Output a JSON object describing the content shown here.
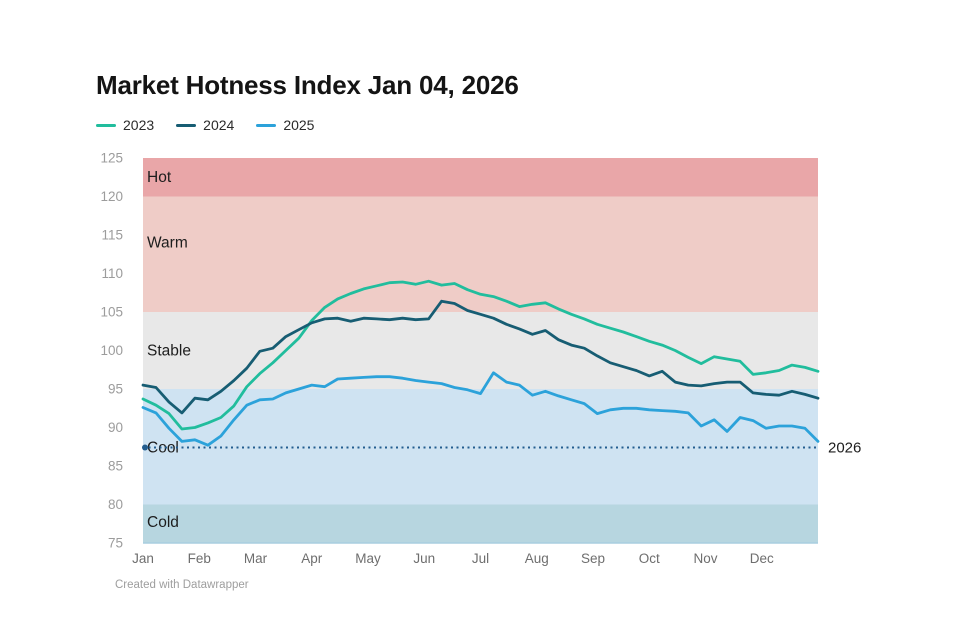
{
  "header": {
    "title": "Market Hotness Index Jan 04, 2026"
  },
  "footer": {
    "attribution": "Created with Datawrapper"
  },
  "chart_data": {
    "type": "line",
    "title": "Market Hotness Index Jan 04, 2026",
    "grid": false,
    "legend_position": "top-left",
    "x_axis": {
      "categories": [
        "Jan",
        "Feb",
        "Mar",
        "Apr",
        "May",
        "Jun",
        "Jul",
        "Aug",
        "Sep",
        "Oct",
        "Nov",
        "Dec"
      ],
      "points_per_year": 53,
      "label_color": "#6e6e6e"
    },
    "y_axis": {
      "min": 75,
      "max": 125,
      "ticks": [
        125,
        120,
        115,
        110,
        105,
        100,
        95,
        90,
        85,
        80,
        75
      ],
      "tick_color": "#9c9c9c"
    },
    "zones": [
      {
        "label": "Hot",
        "from": 120,
        "to": 125,
        "color": "#e9a6a8",
        "label_at": 122.4
      },
      {
        "label": "Warm",
        "from": 105,
        "to": 120,
        "color": "#efccc7",
        "label_at": 113.9
      },
      {
        "label": "Stable",
        "from": 95,
        "to": 105,
        "color": "#e8e8e8",
        "label_at": 99.9
      },
      {
        "label": "Cool",
        "from": 80,
        "to": 95,
        "color": "#cfe3f2",
        "label_at": 87.3
      },
      {
        "label": "Cold",
        "from": 75,
        "to": 80,
        "color": "#b7d6e0",
        "label_at": 77.6
      }
    ],
    "zone_label_color": "#1d1d1d",
    "baseline_color": "#a9cedf",
    "series": [
      {
        "name": "2023",
        "color": "#21bd9d",
        "values": [
          93.7,
          92.9,
          91.8,
          89.8,
          90.0,
          90.6,
          91.3,
          92.8,
          95.3,
          97.0,
          98.4,
          100.0,
          101.6,
          103.9,
          105.6,
          106.7,
          107.4,
          108.0,
          108.4,
          108.8,
          108.9,
          108.6,
          109.0,
          108.5,
          108.7,
          107.9,
          107.3,
          107.0,
          106.4,
          105.7,
          106.0,
          106.2,
          105.4,
          104.7,
          104.1,
          103.4,
          102.9,
          102.4,
          101.8,
          101.2,
          100.7,
          100.0,
          99.1,
          98.3,
          99.2,
          98.9,
          98.6,
          96.9,
          97.1,
          97.4,
          98.1,
          97.8,
          97.3
        ]
      },
      {
        "name": "2024",
        "color": "#175d73",
        "values": [
          95.5,
          95.2,
          93.3,
          91.9,
          93.8,
          93.6,
          94.7,
          96.1,
          97.7,
          99.9,
          100.3,
          101.8,
          102.7,
          103.6,
          104.1,
          104.2,
          103.8,
          104.2,
          104.1,
          104.0,
          104.2,
          104.0,
          104.1,
          106.4,
          106.1,
          105.2,
          104.7,
          104.2,
          103.4,
          102.8,
          102.1,
          102.6,
          101.4,
          100.7,
          100.3,
          99.3,
          98.4,
          97.9,
          97.4,
          96.7,
          97.3,
          95.9,
          95.5,
          95.4,
          95.7,
          95.9,
          95.9,
          94.5,
          94.3,
          94.2,
          94.7,
          94.3,
          93.8
        ]
      },
      {
        "name": "2025",
        "color": "#2ca2da",
        "values": [
          92.6,
          91.9,
          89.9,
          88.2,
          88.4,
          87.7,
          88.9,
          91.0,
          92.9,
          93.6,
          93.7,
          94.5,
          95.0,
          95.5,
          95.3,
          96.3,
          96.4,
          96.5,
          96.6,
          96.6,
          96.4,
          96.1,
          95.9,
          95.7,
          95.2,
          94.9,
          94.4,
          97.1,
          95.9,
          95.5,
          94.2,
          94.7,
          94.1,
          93.6,
          93.1,
          91.8,
          92.3,
          92.5,
          92.5,
          92.3,
          92.2,
          92.1,
          91.9,
          90.2,
          91.0,
          89.5,
          91.3,
          90.9,
          89.9,
          90.2,
          90.2,
          89.9,
          88.2
        ]
      }
    ],
    "reference_line": {
      "label": "2026",
      "value": 87.4,
      "color": "#235d8f",
      "style": "dotted",
      "start_dot": true,
      "label_color": "#1d1d1d"
    }
  }
}
